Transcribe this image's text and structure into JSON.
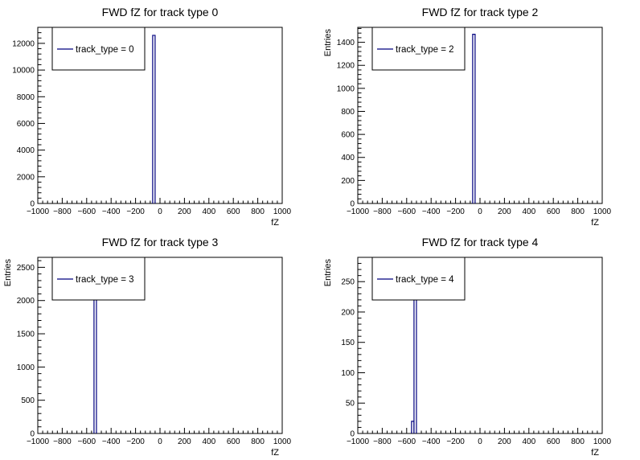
{
  "chart_data": [
    {
      "type": "bar",
      "title": "FWD fZ for track type 0",
      "xlabel": "fZ",
      "ylabel": "",
      "xlim": [
        -1000,
        1000
      ],
      "ylim": [
        0,
        13200
      ],
      "x_ticks": [
        -1000,
        -800,
        -600,
        -400,
        -200,
        0,
        200,
        400,
        600,
        800,
        1000
      ],
      "y_ticks": [
        0,
        2000,
        4000,
        6000,
        8000,
        10000,
        12000
      ],
      "legend": "track_type = 0",
      "legend_position": "top-left",
      "line_color": "#00007f",
      "bins": [
        {
          "x0": -60,
          "x1": -40,
          "value": 12600
        }
      ]
    },
    {
      "type": "bar",
      "title": "FWD fZ for track type 2",
      "xlabel": "fZ",
      "ylabel": "Entries",
      "xlim": [
        -1000,
        1000
      ],
      "ylim": [
        0,
        1530
      ],
      "x_ticks": [
        -1000,
        -800,
        -600,
        -400,
        -200,
        0,
        200,
        400,
        600,
        800,
        1000
      ],
      "y_ticks": [
        0,
        200,
        400,
        600,
        800,
        1000,
        1200,
        1400
      ],
      "legend": "track_type = 2",
      "legend_position": "top-left",
      "line_color": "#00007f",
      "bins": [
        {
          "x0": -60,
          "x1": -40,
          "value": 1470
        }
      ]
    },
    {
      "type": "bar",
      "title": "FWD fZ for track type 3",
      "xlabel": "fZ",
      "ylabel": "Entries",
      "xlim": [
        -1000,
        1000
      ],
      "ylim": [
        0,
        2650
      ],
      "x_ticks": [
        -1000,
        -800,
        -600,
        -400,
        -200,
        0,
        200,
        400,
        600,
        800,
        1000
      ],
      "y_ticks": [
        0,
        500,
        1000,
        1500,
        2000,
        2500
      ],
      "legend": "track_type = 3",
      "legend_position": "top-left",
      "line_color": "#00007f",
      "bins": [
        {
          "x0": -540,
          "x1": -520,
          "value": 2600
        }
      ]
    },
    {
      "type": "bar",
      "title": "FWD fZ for track type 4",
      "xlabel": "fZ",
      "ylabel": "Entries",
      "xlim": [
        -1000,
        1000
      ],
      "ylim": [
        0,
        290
      ],
      "x_ticks": [
        -1000,
        -800,
        -600,
        -400,
        -200,
        0,
        200,
        400,
        600,
        800,
        1000
      ],
      "y_ticks": [
        0,
        50,
        100,
        150,
        200,
        250
      ],
      "legend": "track_type = 4",
      "legend_position": "top-left",
      "line_color": "#00007f",
      "bins": [
        {
          "x0": -560,
          "x1": -540,
          "value": 20
        },
        {
          "x0": -540,
          "x1": -520,
          "value": 280
        }
      ]
    }
  ]
}
